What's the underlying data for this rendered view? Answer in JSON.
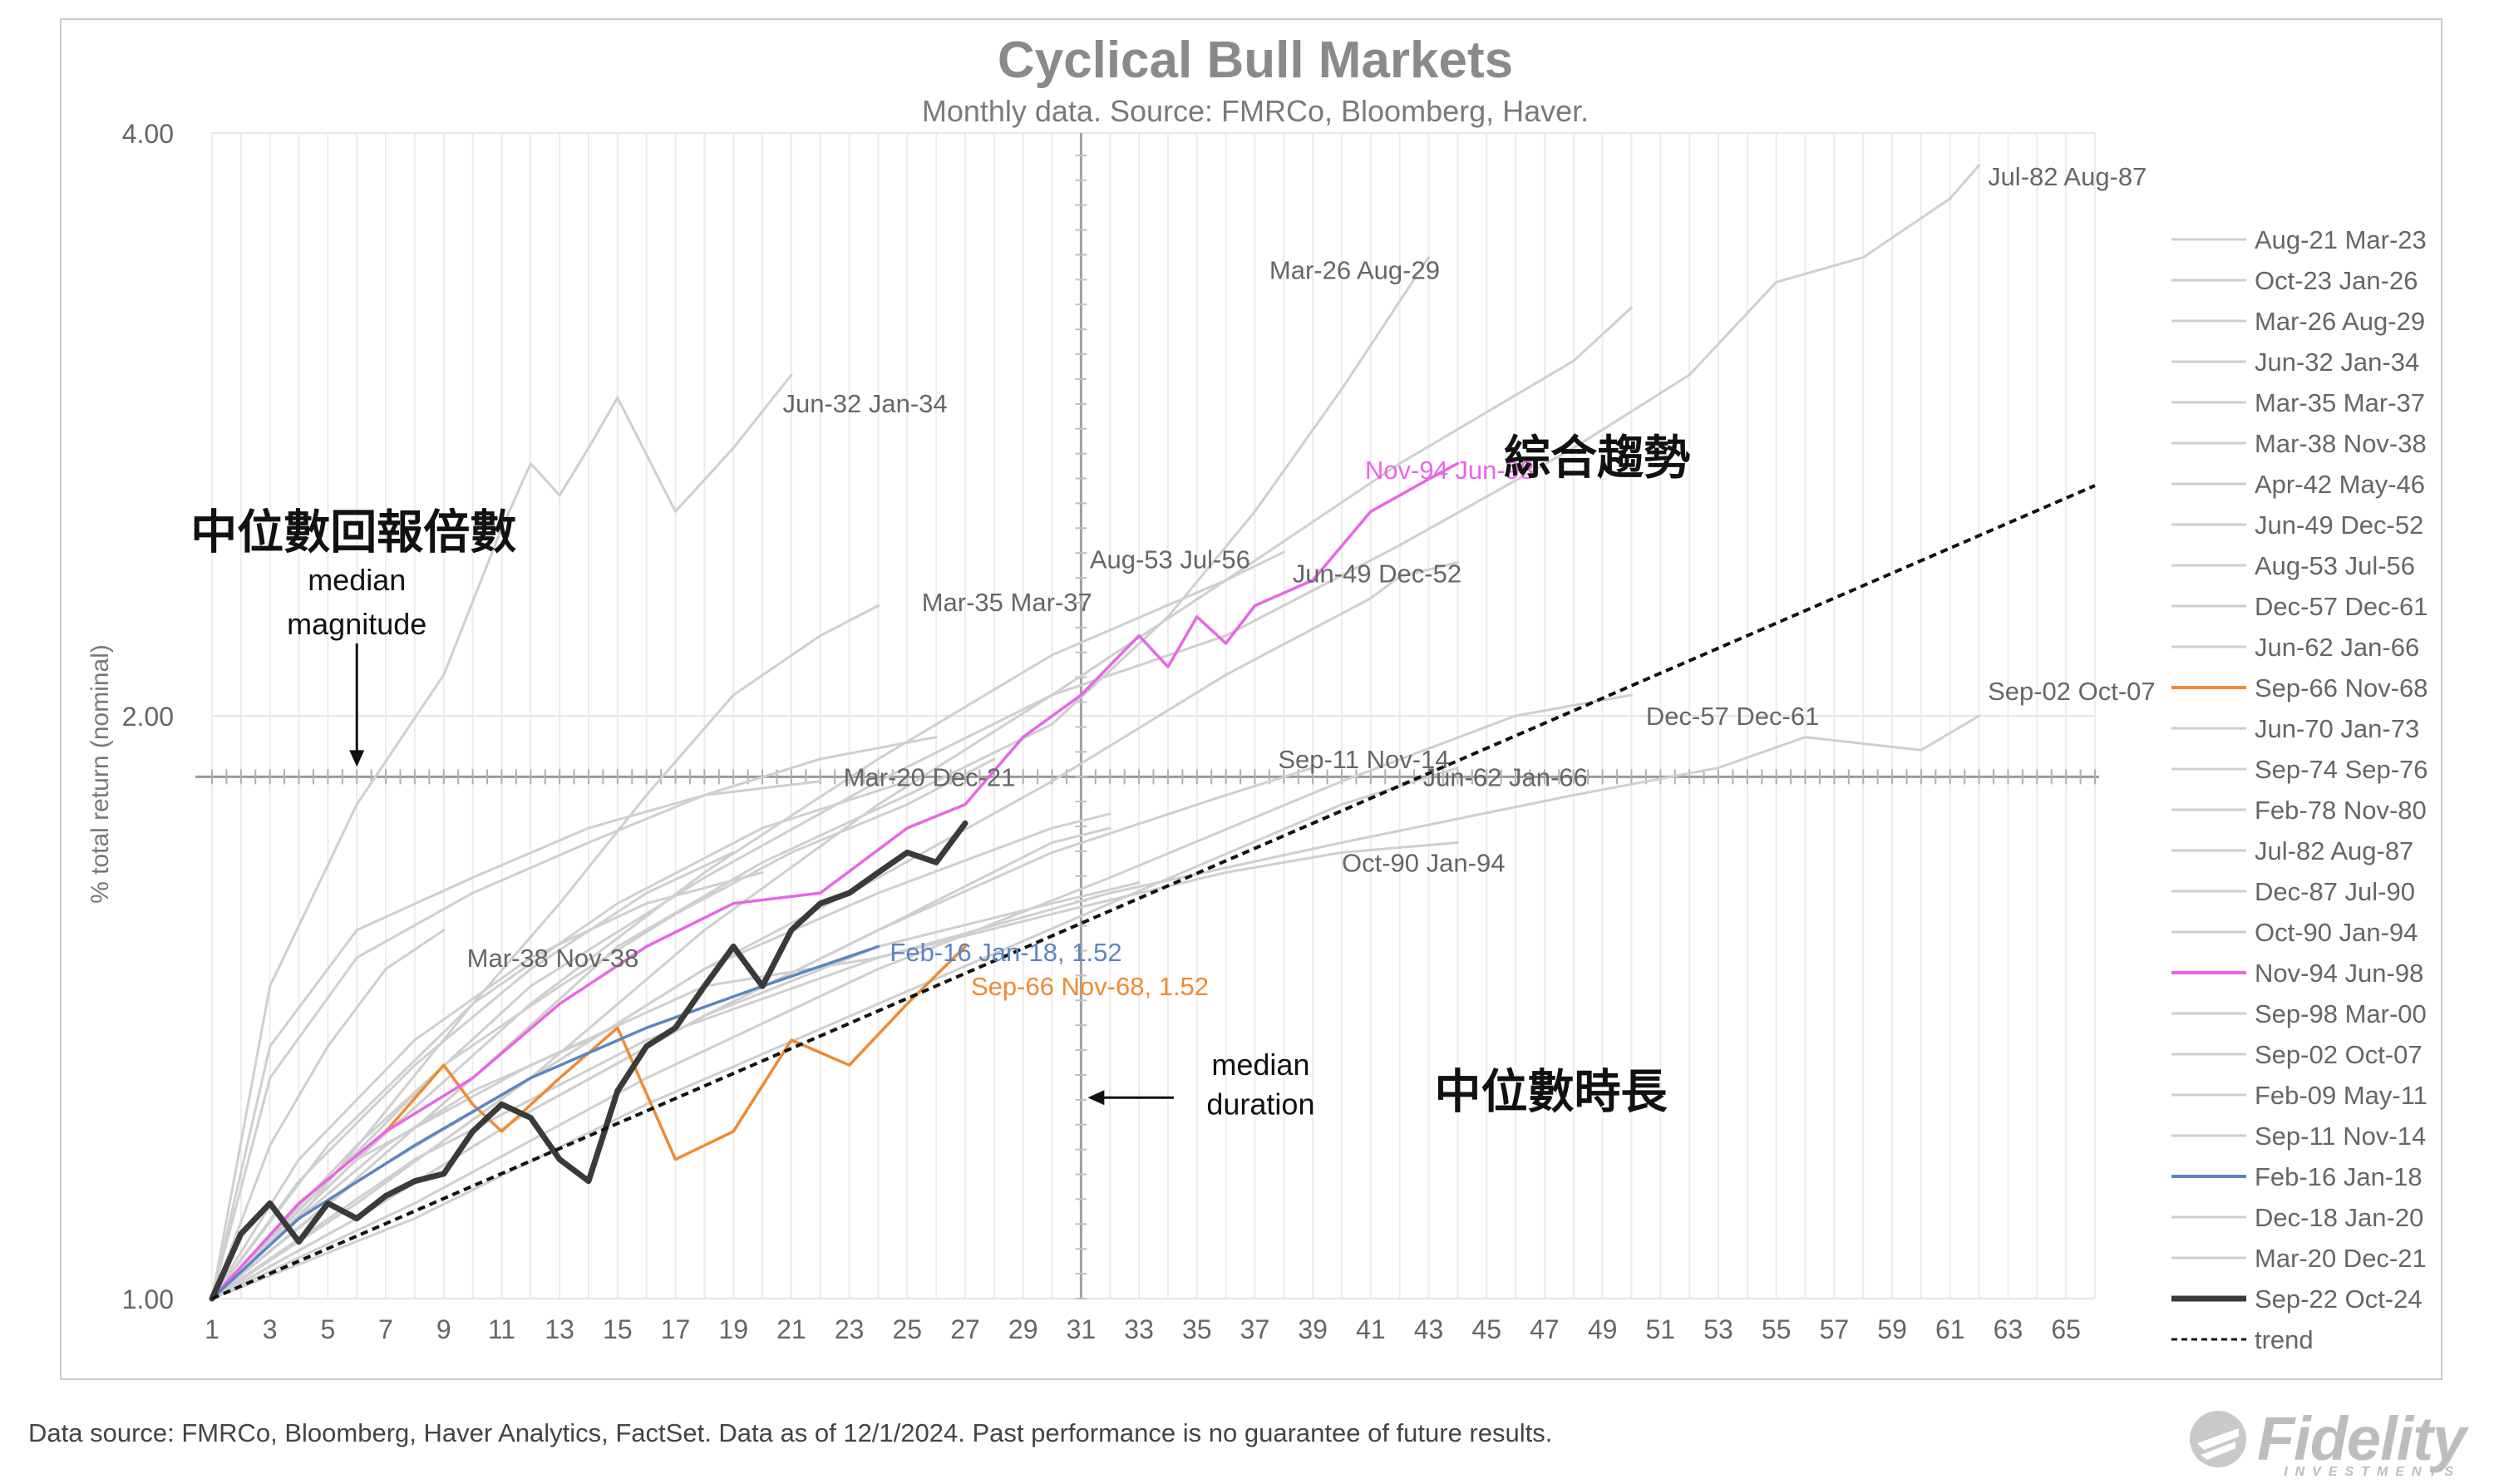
{
  "chart_data": {
    "type": "line",
    "title": "Cyclical Bull Markets",
    "subtitle": "Monthly data.  Source: FMRCo, Bloomberg, Haver.",
    "ylabel": "% total return (nominal)",
    "y_scale": "log",
    "ylim": [
      1.0,
      4.0
    ],
    "y_ticks": [
      "1.00",
      "2.00",
      "4.00"
    ],
    "xlim": [
      1,
      66
    ],
    "x_ticks": [
      "1",
      "3",
      "5",
      "7",
      "9",
      "11",
      "13",
      "15",
      "17",
      "19",
      "21",
      "23",
      "25",
      "27",
      "29",
      "31",
      "33",
      "35",
      "37",
      "39",
      "41",
      "43",
      "45",
      "47",
      "49",
      "51",
      "53",
      "55",
      "57",
      "59",
      "61",
      "63",
      "65"
    ],
    "median_magnitude": 1.86,
    "median_duration": 31,
    "trend": {
      "name": "trend",
      "x": [
        1,
        66
      ],
      "y": [
        1.0,
        2.63
      ]
    },
    "series": [
      {
        "name": "Aug-21 Mar-23",
        "color": "#cfcfcf",
        "x": [
          1,
          4,
          8,
          12,
          16,
          20
        ],
        "y": [
          1.0,
          1.18,
          1.36,
          1.5,
          1.6,
          1.66
        ]
      },
      {
        "name": "Oct-23 Jan-26",
        "color": "#cfcfcf",
        "x": [
          1,
          5,
          9,
          13,
          17,
          21,
          25,
          28
        ],
        "y": [
          1.0,
          1.15,
          1.32,
          1.45,
          1.58,
          1.7,
          1.8,
          1.9
        ]
      },
      {
        "name": "Mar-26 Aug-29",
        "color": "#cfcfcf",
        "x": [
          1,
          5,
          10,
          15,
          20,
          25,
          30,
          34,
          37,
          40,
          43
        ],
        "y": [
          1.0,
          1.12,
          1.3,
          1.52,
          1.68,
          1.82,
          1.98,
          2.25,
          2.55,
          2.95,
          3.45
        ]
      },
      {
        "name": "Jun-32 Jan-34",
        "color": "#cfcfcf",
        "x": [
          1,
          3,
          6,
          9,
          11,
          12,
          13,
          14,
          15,
          17,
          19,
          21
        ],
        "y": [
          1.0,
          1.45,
          1.8,
          2.1,
          2.5,
          2.7,
          2.6,
          2.75,
          2.92,
          2.55,
          2.75,
          3.0
        ]
      },
      {
        "name": "Mar-35 Mar-37",
        "color": "#cfcfcf",
        "x": [
          1,
          4,
          7,
          10,
          13,
          16,
          19,
          22,
          24
        ],
        "y": [
          1.0,
          1.1,
          1.25,
          1.42,
          1.6,
          1.82,
          2.05,
          2.2,
          2.28
        ]
      },
      {
        "name": "Mar-38 Nov-38",
        "color": "#cfcfcf",
        "x": [
          1,
          3,
          5,
          7,
          9
        ],
        "y": [
          1.0,
          1.2,
          1.35,
          1.48,
          1.55
        ]
      },
      {
        "name": "Apr-42 May-46",
        "color": "#cfcfcf",
        "x": [
          1,
          6,
          12,
          18,
          24,
          30,
          36,
          42,
          48,
          50
        ],
        "y": [
          1.0,
          1.12,
          1.3,
          1.55,
          1.8,
          2.05,
          2.35,
          2.7,
          3.05,
          3.25
        ]
      },
      {
        "name": "Jun-49 Dec-52",
        "color": "#cfcfcf",
        "x": [
          1,
          6,
          12,
          18,
          24,
          30,
          36,
          41,
          42,
          44
        ],
        "y": [
          1.0,
          1.15,
          1.3,
          1.48,
          1.65,
          1.85,
          2.1,
          2.3,
          2.36,
          2.4
        ]
      },
      {
        "name": "Aug-53 Jul-56",
        "color": "#cfcfcf",
        "x": [
          1,
          6,
          12,
          18,
          24,
          30,
          36,
          38
        ],
        "y": [
          1.0,
          1.18,
          1.42,
          1.66,
          1.9,
          2.15,
          2.35,
          2.43
        ]
      },
      {
        "name": "Dec-57 Dec-61",
        "color": "#cfcfcf",
        "x": [
          1,
          8,
          16,
          24,
          32,
          40,
          46,
          50
        ],
        "y": [
          1.0,
          1.12,
          1.3,
          1.48,
          1.65,
          1.85,
          2.0,
          2.05
        ]
      },
      {
        "name": "Jun-62 Jan-66",
        "color": "#cfcfcf",
        "x": [
          1,
          8,
          16,
          24,
          32,
          40,
          44
        ],
        "y": [
          1.0,
          1.1,
          1.26,
          1.42,
          1.6,
          1.8,
          1.88
        ]
      },
      {
        "name": "Sep-66 Nov-68",
        "color": "#f08a30",
        "x": [
          1,
          4,
          7,
          9,
          10,
          11,
          13,
          15,
          17,
          19,
          21,
          23,
          25,
          27
        ],
        "y": [
          1.0,
          1.12,
          1.22,
          1.32,
          1.26,
          1.22,
          1.3,
          1.38,
          1.18,
          1.22,
          1.36,
          1.32,
          1.42,
          1.52
        ]
      },
      {
        "name": "Jun-70 Jan-73",
        "color": "#cfcfcf",
        "x": [
          1,
          6,
          12,
          18,
          24,
          30,
          32
        ],
        "y": [
          1.0,
          1.12,
          1.3,
          1.48,
          1.62,
          1.75,
          1.78
        ]
      },
      {
        "name": "Sep-74 Sep-76",
        "color": "#cfcfcf",
        "x": [
          1,
          5,
          10,
          15,
          20,
          25
        ],
        "y": [
          1.0,
          1.2,
          1.42,
          1.6,
          1.75,
          1.85
        ]
      },
      {
        "name": "Feb-78 Nov-80",
        "color": "#cfcfcf",
        "x": [
          1,
          6,
          12,
          18,
          24,
          30,
          33
        ],
        "y": [
          1.0,
          1.1,
          1.25,
          1.4,
          1.52,
          1.6,
          1.64
        ]
      },
      {
        "name": "Jul-82 Aug-87",
        "color": "#cfcfcf",
        "x": [
          1,
          6,
          12,
          18,
          24,
          30,
          36,
          42,
          48,
          52,
          55,
          58,
          61,
          62
        ],
        "y": [
          1.0,
          1.2,
          1.45,
          1.65,
          1.85,
          2.05,
          2.2,
          2.45,
          2.75,
          3.0,
          3.35,
          3.45,
          3.7,
          3.85
        ]
      },
      {
        "name": "Dec-87 Jul-90",
        "color": "#cfcfcf",
        "x": [
          1,
          6,
          12,
          18,
          24,
          30,
          32
        ],
        "y": [
          1.0,
          1.1,
          1.25,
          1.4,
          1.55,
          1.72,
          1.75
        ]
      },
      {
        "name": "Oct-90 Jan-94",
        "color": "#cfcfcf",
        "x": [
          1,
          6,
          12,
          18,
          24,
          30,
          36,
          40,
          44
        ],
        "y": [
          1.0,
          1.18,
          1.32,
          1.45,
          1.5,
          1.58,
          1.66,
          1.7,
          1.72
        ]
      },
      {
        "name": "Nov-94 Jun-98",
        "color": "#e866e8",
        "x": [
          1,
          4,
          7,
          10,
          13,
          16,
          19,
          22,
          25,
          27,
          29,
          31,
          33,
          34,
          35,
          36,
          37,
          39,
          41,
          43,
          44
        ],
        "y": [
          1.0,
          1.12,
          1.22,
          1.3,
          1.42,
          1.52,
          1.6,
          1.62,
          1.75,
          1.8,
          1.95,
          2.05,
          2.2,
          2.12,
          2.25,
          2.18,
          2.28,
          2.35,
          2.55,
          2.65,
          2.7
        ]
      },
      {
        "name": "Sep-98 Mar-00",
        "color": "#cfcfcf",
        "x": [
          1,
          4,
          8,
          12,
          16,
          19
        ],
        "y": [
          1.0,
          1.15,
          1.32,
          1.48,
          1.62,
          1.7
        ]
      },
      {
        "name": "Sep-02 Oct-07",
        "color": "#cfcfcf",
        "x": [
          1,
          8,
          16,
          24,
          32,
          40,
          48,
          53,
          56,
          60,
          62
        ],
        "y": [
          1.0,
          1.18,
          1.36,
          1.5,
          1.62,
          1.72,
          1.82,
          1.88,
          1.95,
          1.92,
          2.0
        ]
      },
      {
        "name": "Feb-09 May-11",
        "color": "#cfcfcf",
        "x": [
          1,
          3,
          6,
          10,
          14,
          18,
          22,
          26
        ],
        "y": [
          1.0,
          1.3,
          1.5,
          1.62,
          1.72,
          1.82,
          1.9,
          1.95
        ]
      },
      {
        "name": "Sep-11 Nov-14",
        "color": "#cfcfcf",
        "x": [
          1,
          6,
          12,
          18,
          24,
          30,
          36,
          39
        ],
        "y": [
          1.0,
          1.1,
          1.25,
          1.4,
          1.55,
          1.7,
          1.82,
          1.88
        ]
      },
      {
        "name": "Feb-16 Jan-18",
        "color": "#5b86c0",
        "x": [
          1,
          4,
          8,
          12,
          16,
          20,
          24
        ],
        "y": [
          1.0,
          1.1,
          1.2,
          1.3,
          1.38,
          1.45,
          1.52
        ]
      },
      {
        "name": "Dec-18 Jan-20",
        "color": "#cfcfcf",
        "x": [
          1,
          4,
          7,
          10,
          13,
          14
        ],
        "y": [
          1.0,
          1.1,
          1.2,
          1.28,
          1.34,
          1.36
        ]
      },
      {
        "name": "Mar-20 Dec-21",
        "color": "#cfcfcf",
        "x": [
          1,
          3,
          6,
          10,
          14,
          18,
          22
        ],
        "y": [
          1.0,
          1.35,
          1.55,
          1.65,
          1.75,
          1.82,
          1.85
        ]
      },
      {
        "name": "Sep-22 Oct-24",
        "color": "#3a3a3a",
        "x": [
          1,
          2,
          3,
          4,
          5,
          6,
          7,
          8,
          9,
          10,
          11,
          12,
          13,
          14,
          15,
          16,
          17,
          18,
          19,
          20,
          21,
          22,
          23,
          24,
          25,
          26,
          27
        ],
        "y": [
          1.0,
          1.08,
          1.12,
          1.07,
          1.12,
          1.1,
          1.13,
          1.15,
          1.16,
          1.22,
          1.26,
          1.24,
          1.18,
          1.15,
          1.28,
          1.35,
          1.38,
          1.45,
          1.52,
          1.45,
          1.55,
          1.6,
          1.62,
          1.66,
          1.7,
          1.68,
          1.76
        ]
      }
    ],
    "labels": [
      {
        "text": "Jul-82 Aug-87",
        "x": 62.3,
        "y": 3.8,
        "color": "#666666"
      },
      {
        "text": "Mar-26 Aug-29",
        "x": 37.5,
        "y": 3.4,
        "color": "#666666"
      },
      {
        "text": "Jun-32 Jan-34",
        "x": 20.7,
        "y": 2.9,
        "color": "#666666"
      },
      {
        "text": "Nov-94 Jun-98",
        "x": 40.8,
        "y": 2.68,
        "color": "#e866e8"
      },
      {
        "text": "Aug-53 Jul-56",
        "x": 31.3,
        "y": 2.41,
        "color": "#666666"
      },
      {
        "text": "Jun-49 Dec-52",
        "x": 38.3,
        "y": 2.37,
        "color": "#666666"
      },
      {
        "text": "Mar-35 Mar-37",
        "x": 25.5,
        "y": 2.29,
        "color": "#666666"
      },
      {
        "text": "Dec-57 Dec-61",
        "x": 50.5,
        "y": 2.0,
        "color": "#666666"
      },
      {
        "text": "Sep-02 Oct-07",
        "x": 62.3,
        "y": 2.06,
        "color": "#666666"
      },
      {
        "text": "Sep-11 Nov-14",
        "x": 37.8,
        "y": 1.9,
        "color": "#666666"
      },
      {
        "text": "Jun-62 Jan-66",
        "x": 42.8,
        "y": 1.86,
        "color": "#666666"
      },
      {
        "text": "Mar-20 Dec-21",
        "x": 22.8,
        "y": 1.86,
        "color": "#666666"
      },
      {
        "text": "Oct-90 Jan-94",
        "x": 40.0,
        "y": 1.68,
        "color": "#666666"
      },
      {
        "text": "Mar-38 Nov-38",
        "x": 9.8,
        "y": 1.5,
        "color": "#666666"
      },
      {
        "text": "Feb-16 Jan-18, 1.52",
        "x": 24.4,
        "y": 1.51,
        "color": "#5b86c0"
      },
      {
        "text": "Sep-66 Nov-68, 1.52",
        "x": 27.2,
        "y": 1.45,
        "color": "#f08a30"
      }
    ],
    "annotations": [
      {
        "text": "中位數回報倍數",
        "x": 6,
        "y": 2.49,
        "color": "#111111",
        "size": "large"
      },
      {
        "text": "median",
        "x": 6,
        "y": 2.35,
        "color": "#111111",
        "size": "medium"
      },
      {
        "text": "magnitude",
        "x": 6,
        "y": 2.23,
        "color": "#111111",
        "size": "medium"
      },
      {
        "text": "綜合趨勢",
        "x": 45.6,
        "y": 2.72,
        "color": "#111111",
        "size": "large"
      },
      {
        "text": "median",
        "x": 37.2,
        "y": 1.32,
        "color": "#111111",
        "size": "medium"
      },
      {
        "text": "duration",
        "x": 37.2,
        "y": 1.26,
        "color": "#111111",
        "size": "medium"
      },
      {
        "text": "中位數時長",
        "x": 43.2,
        "y": 1.28,
        "color": "#111111",
        "size": "large"
      }
    ],
    "legend_position": "right"
  },
  "footer": {
    "note": "Data source: FMRCo, Bloomberg, Haver Analytics, FactSet. Data as of 12/1/2024. Past performance is no guarantee of future results.",
    "brand": "Fidelity",
    "brand_sub": "INVESTMENTS"
  }
}
